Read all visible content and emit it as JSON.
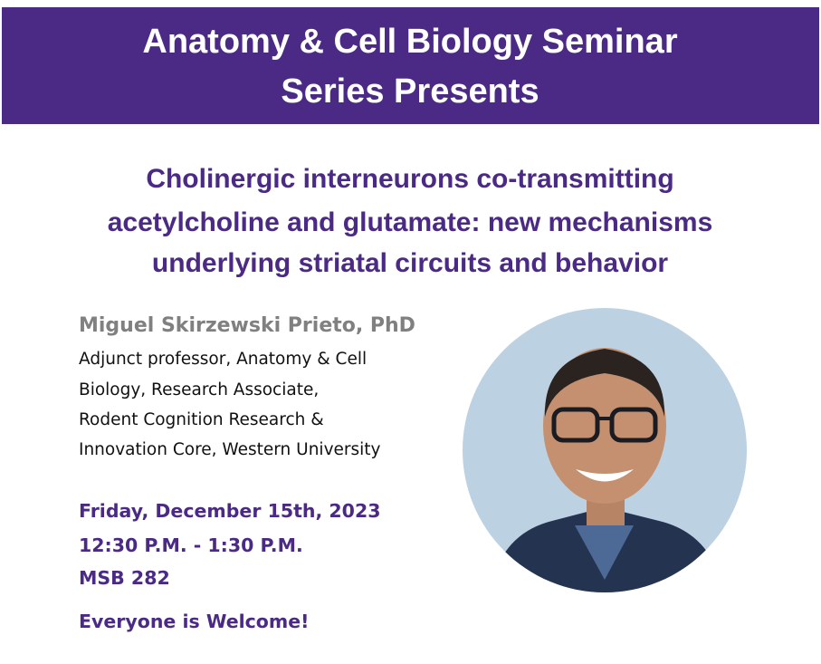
{
  "header": {
    "title_lines": [
      "Anatomy & Cell Biology Seminar",
      "Series Presents"
    ]
  },
  "talk": {
    "title_lines": [
      "Cholinergic interneurons co-transmitting",
      "acetylcholine and glutamate: new mechanisms",
      "underlying striatal circuits and behavior"
    ]
  },
  "speaker": {
    "name": "Miguel Skirzewski Prieto, PhD",
    "affiliation_lines": [
      "Adjunct professor, Anatomy & Cell",
      "Biology, Research Associate,",
      "Rodent Cognition Research &",
      "Innovation Core, Western University"
    ]
  },
  "event": {
    "date": "Friday, December 15th, 2023",
    "time": "12:30 P.M. - 1:30 P.M.",
    "location": "MSB 282",
    "note": "Everyone is Welcome!"
  }
}
